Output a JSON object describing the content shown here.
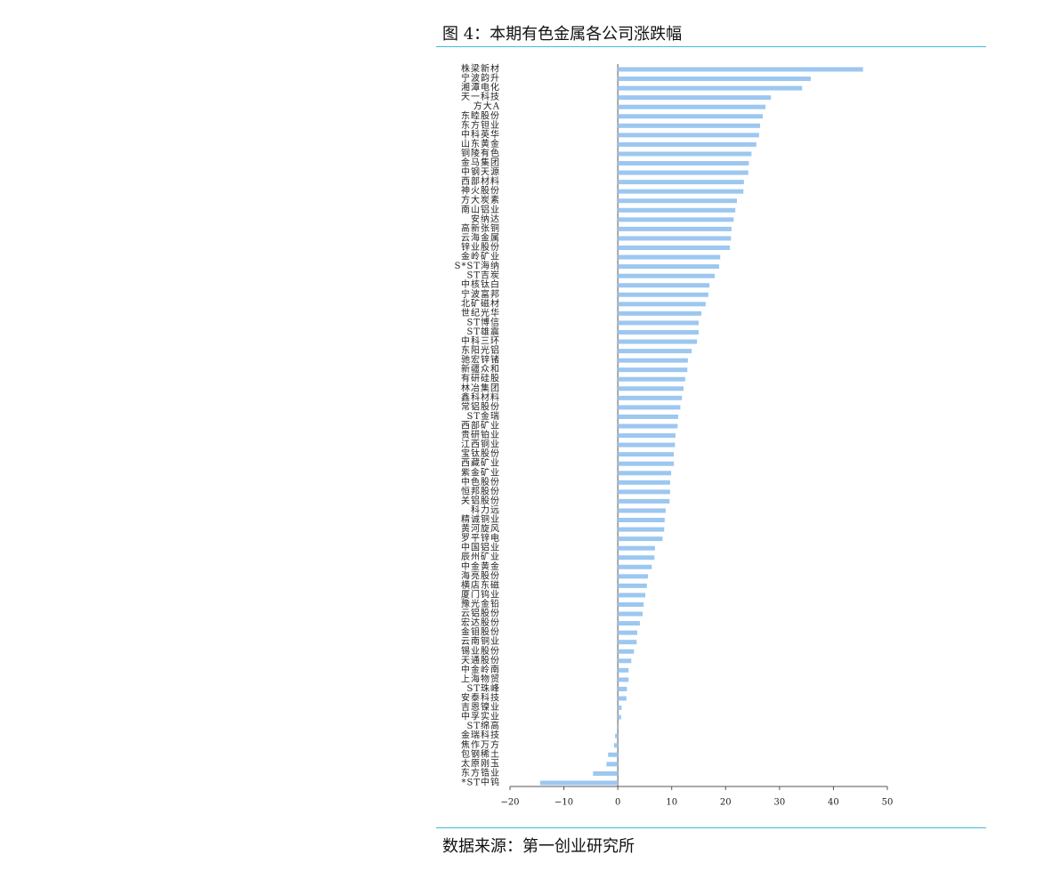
{
  "title": "图 4：本期有色金属各公司涨跌幅",
  "source": "数据来源：第一创业研究所",
  "chart_data": {
    "type": "barh",
    "color": "#9cc7f0",
    "categories": [
      "株梁新材",
      "宁波韵升",
      "湘潭电化",
      "天一科技",
      "方大A",
      "东睦股份",
      "东方钽业",
      "中科英华",
      "山东黄金",
      "铜陵有色",
      "金马集团",
      "中钢天源",
      "西部材料",
      "神火股份",
      "方大炭素",
      "南山铝业",
      "安纳达",
      "高新张铜",
      "云海金属",
      "锌业股份",
      "金岭矿业",
      "S*ST海纳",
      "ST吉炭",
      "中核钛白",
      "宁波富邦",
      "北矿磁材",
      "世纪光华",
      "ST博信",
      "ST雄震",
      "中科三环",
      "东阳光铝",
      "驰宏锌锗",
      "新疆众和",
      "有研硅股",
      "林冶集团",
      "鑫科材料",
      "常铝股份",
      "ST金瑞",
      "西部矿业",
      "贵研铂业",
      "江西铜业",
      "宝钛股份",
      "西藏矿业",
      "紫金矿业",
      "中色股份",
      "恒邦股份",
      "关铝股份",
      "科力远",
      "精诚铜业",
      "黄河旋风",
      "罗平锌电",
      "中国铝业",
      "辰州矿业",
      "中金黄金",
      "海亮股份",
      "横店东磁",
      "厦门钨业",
      "豫光金铅",
      "云铝股份",
      "宏达股份",
      "金钼股份",
      "云南铜业",
      "锡业股份",
      "天通股份",
      "中金岭南",
      "上海物贸",
      "ST珠峰",
      "安泰科技",
      "吉恩镍业",
      "中孚实业",
      "ST绵高",
      "金瑞科技",
      "焦作万方",
      "包钢稀土",
      "太原刚玉",
      "东方锆业",
      "*ST中钨"
    ],
    "values": [
      45.5,
      35.8,
      34.2,
      28.4,
      27.4,
      26.9,
      26.4,
      26.2,
      25.7,
      24.8,
      24.3,
      24.2,
      23.4,
      23.3,
      22.1,
      21.8,
      21.5,
      21.1,
      21.0,
      20.8,
      19.0,
      18.8,
      18.0,
      17.0,
      16.8,
      16.3,
      15.5,
      15.0,
      15.0,
      14.7,
      13.7,
      13.0,
      12.9,
      12.5,
      12.2,
      11.9,
      11.6,
      11.2,
      11.1,
      10.7,
      10.6,
      10.4,
      10.4,
      9.9,
      9.7,
      9.7,
      9.6,
      8.9,
      8.7,
      8.6,
      8.3,
      6.9,
      6.8,
      6.3,
      5.6,
      5.4,
      5.1,
      4.8,
      4.6,
      4.1,
      3.6,
      3.5,
      3.0,
      2.5,
      2.0,
      2.0,
      1.7,
      1.6,
      0.7,
      0.6,
      0.2,
      -0.5,
      -0.7,
      -1.8,
      -2.1,
      -4.6,
      -14.4
    ],
    "xlim": [
      -20,
      50
    ],
    "xticks": [
      {
        "value": -20,
        "label": "−20"
      },
      {
        "value": -10,
        "label": "−10"
      },
      0,
      10,
      20,
      30,
      40,
      50
    ]
  }
}
